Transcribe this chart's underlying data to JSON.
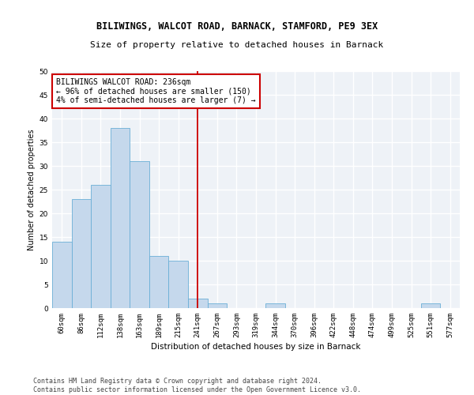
{
  "title1": "BILIWINGS, WALCOT ROAD, BARNACK, STAMFORD, PE9 3EX",
  "title2": "Size of property relative to detached houses in Barnack",
  "xlabel": "Distribution of detached houses by size in Barnack",
  "ylabel": "Number of detached properties",
  "categories": [
    "60sqm",
    "86sqm",
    "112sqm",
    "138sqm",
    "163sqm",
    "189sqm",
    "215sqm",
    "241sqm",
    "267sqm",
    "293sqm",
    "319sqm",
    "344sqm",
    "370sqm",
    "396sqm",
    "422sqm",
    "448sqm",
    "474sqm",
    "499sqm",
    "525sqm",
    "551sqm",
    "577sqm"
  ],
  "values": [
    14,
    23,
    26,
    38,
    31,
    11,
    10,
    2,
    1,
    0,
    0,
    1,
    0,
    0,
    0,
    0,
    0,
    0,
    0,
    1,
    0
  ],
  "bar_color": "#c5d8ec",
  "bar_edge_color": "#6aafd6",
  "vline_x_index": 7,
  "vline_color": "#cc0000",
  "annotation_box_color": "#cc0000",
  "annotation_line1": "BILIWINGS WALCOT ROAD: 236sqm",
  "annotation_line2": "← 96% of detached houses are smaller (150)",
  "annotation_line3": "4% of semi-detached houses are larger (7) →",
  "ylim": [
    0,
    50
  ],
  "yticks": [
    0,
    5,
    10,
    15,
    20,
    25,
    30,
    35,
    40,
    45,
    50
  ],
  "footer1": "Contains HM Land Registry data © Crown copyright and database right 2024.",
  "footer2": "Contains public sector information licensed under the Open Government Licence v3.0.",
  "bg_color": "#eef2f7",
  "grid_color": "#ffffff",
  "title1_fontsize": 8.5,
  "title2_fontsize": 8.0,
  "axis_label_fontsize": 7.5,
  "tick_fontsize": 6.5,
  "annotation_fontsize": 7.0,
  "footer_fontsize": 6.0,
  "ylabel_fontsize": 7.0
}
